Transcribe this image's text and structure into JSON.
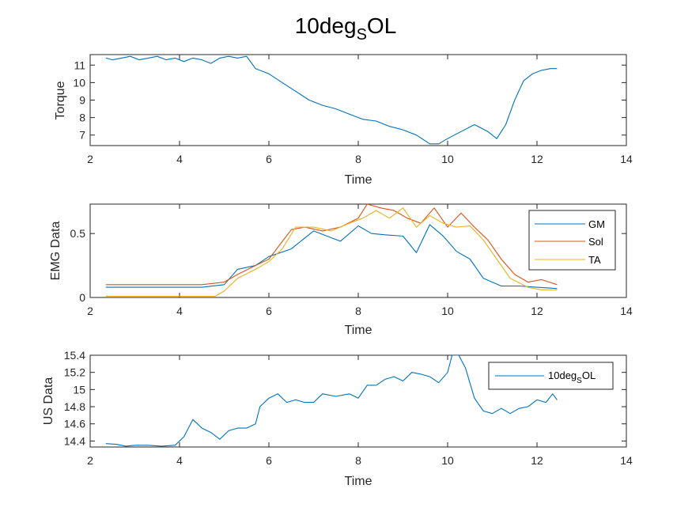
{
  "figure": {
    "title_main": "10deg",
    "title_sub": "S",
    "title_tail": "OL"
  },
  "chart_data": [
    {
      "type": "line",
      "xlabel": "Time",
      "ylabel": "Torque",
      "xlim": [
        2,
        14
      ],
      "ylim": [
        6.4,
        11.6
      ],
      "xticks": [
        2,
        4,
        6,
        8,
        10,
        12,
        14
      ],
      "yticks": [
        7,
        8,
        9,
        10,
        11
      ],
      "grid": false,
      "series": [
        {
          "color": "#0072BD",
          "x": [
            2.35,
            2.5,
            2.7,
            2.9,
            3.1,
            3.3,
            3.5,
            3.7,
            3.9,
            4.1,
            4.3,
            4.5,
            4.7,
            4.9,
            5.1,
            5.3,
            5.5,
            5.7,
            6.0,
            6.3,
            6.6,
            6.9,
            7.2,
            7.5,
            7.8,
            8.1,
            8.4,
            8.7,
            9.0,
            9.3,
            9.6,
            9.8,
            10.0,
            10.3,
            10.6,
            10.9,
            11.1,
            11.3,
            11.5,
            11.7,
            11.9,
            12.1,
            12.3,
            12.45
          ],
          "y": [
            11.4,
            11.3,
            11.4,
            11.5,
            11.3,
            11.4,
            11.5,
            11.3,
            11.4,
            11.2,
            11.4,
            11.3,
            11.1,
            11.4,
            11.5,
            11.4,
            11.5,
            10.8,
            10.5,
            10.0,
            9.5,
            9.0,
            8.7,
            8.5,
            8.2,
            7.9,
            7.8,
            7.5,
            7.3,
            7.0,
            6.5,
            6.5,
            6.8,
            7.2,
            7.6,
            7.2,
            6.8,
            7.6,
            9.0,
            10.1,
            10.5,
            10.7,
            10.8,
            10.8
          ]
        }
      ]
    },
    {
      "type": "line",
      "xlabel": "Time",
      "ylabel": "EMG Data",
      "xlim": [
        2,
        14
      ],
      "ylim": [
        0,
        0.73
      ],
      "xticks": [
        2,
        4,
        6,
        8,
        10,
        12,
        14
      ],
      "yticks": [
        0,
        0.5
      ],
      "ytick_labels": [
        "0",
        "0.5"
      ],
      "grid": false,
      "legend": "top-right",
      "series": [
        {
          "name": "GM",
          "color": "#0072BD",
          "x": [
            2.35,
            3.0,
            3.5,
            4.0,
            4.5,
            5.0,
            5.3,
            5.7,
            6.0,
            6.5,
            7.0,
            7.3,
            7.6,
            8.0,
            8.3,
            8.6,
            9.0,
            9.3,
            9.6,
            9.9,
            10.2,
            10.5,
            10.8,
            11.2,
            11.6,
            12.0,
            12.45
          ],
          "y": [
            0.08,
            0.08,
            0.08,
            0.08,
            0.08,
            0.1,
            0.22,
            0.25,
            0.32,
            0.38,
            0.52,
            0.48,
            0.44,
            0.56,
            0.5,
            0.49,
            0.48,
            0.35,
            0.57,
            0.48,
            0.36,
            0.3,
            0.15,
            0.09,
            0.09,
            0.08,
            0.07
          ]
        },
        {
          "name": "Sol",
          "color": "#D95319",
          "x": [
            2.35,
            3.0,
            3.5,
            4.0,
            4.5,
            5.0,
            5.3,
            5.7,
            6.0,
            6.5,
            6.8,
            7.2,
            7.6,
            8.0,
            8.2,
            8.5,
            8.8,
            9.1,
            9.4,
            9.7,
            10.0,
            10.3,
            10.6,
            10.9,
            11.2,
            11.5,
            11.8,
            12.1,
            12.45
          ],
          "y": [
            0.1,
            0.1,
            0.1,
            0.1,
            0.1,
            0.12,
            0.18,
            0.25,
            0.3,
            0.53,
            0.55,
            0.52,
            0.55,
            0.62,
            0.73,
            0.7,
            0.68,
            0.62,
            0.58,
            0.7,
            0.55,
            0.66,
            0.55,
            0.45,
            0.3,
            0.18,
            0.12,
            0.14,
            0.1
          ]
        },
        {
          "name": "TA",
          "color": "#EDB120",
          "x": [
            2.35,
            3.0,
            3.5,
            4.0,
            4.5,
            4.8,
            5.0,
            5.3,
            5.7,
            6.0,
            6.3,
            6.6,
            7.0,
            7.4,
            7.8,
            8.1,
            8.4,
            8.7,
            9.0,
            9.3,
            9.6,
            9.9,
            10.2,
            10.5,
            10.8,
            11.1,
            11.4,
            11.8,
            12.1,
            12.45
          ],
          "y": [
            0.01,
            0.01,
            0.01,
            0.01,
            0.01,
            0.01,
            0.05,
            0.15,
            0.22,
            0.28,
            0.38,
            0.55,
            0.55,
            0.52,
            0.58,
            0.62,
            0.68,
            0.62,
            0.7,
            0.55,
            0.64,
            0.58,
            0.55,
            0.56,
            0.45,
            0.3,
            0.15,
            0.08,
            0.06,
            0.06
          ]
        }
      ]
    },
    {
      "type": "line",
      "xlabel": "Time",
      "ylabel": "US Data",
      "xlim": [
        2,
        14
      ],
      "ylim": [
        14.33,
        15.4
      ],
      "xticks": [
        2,
        4,
        6,
        8,
        10,
        12,
        14
      ],
      "yticks": [
        14.4,
        14.6,
        14.8,
        15,
        15.2,
        15.4
      ],
      "ytick_labels": [
        "14.4",
        "14.6",
        "14.8",
        "15",
        "15.2",
        "15.4"
      ],
      "grid": false,
      "legend": "top-right",
      "legend_main": "10deg",
      "legend_sub": "S",
      "legend_tail": "OL",
      "series": [
        {
          "color": "#0072BD",
          "x": [
            2.35,
            2.6,
            2.8,
            3.0,
            3.3,
            3.6,
            3.9,
            4.1,
            4.3,
            4.5,
            4.7,
            4.9,
            5.1,
            5.3,
            5.5,
            5.7,
            5.8,
            6.0,
            6.2,
            6.4,
            6.6,
            6.8,
            7.0,
            7.2,
            7.5,
            7.8,
            8.0,
            8.2,
            8.4,
            8.6,
            8.8,
            9.0,
            9.2,
            9.4,
            9.6,
            9.8,
            10.0,
            10.1,
            10.25,
            10.4,
            10.6,
            10.8,
            11.0,
            11.2,
            11.4,
            11.6,
            11.8,
            12.0,
            12.2,
            12.35,
            12.45
          ],
          "y": [
            14.37,
            14.36,
            14.34,
            14.35,
            14.35,
            14.34,
            14.35,
            14.45,
            14.65,
            14.55,
            14.5,
            14.42,
            14.52,
            14.55,
            14.55,
            14.6,
            14.8,
            14.9,
            14.95,
            14.85,
            14.88,
            14.85,
            14.85,
            14.95,
            14.92,
            14.95,
            14.9,
            15.05,
            15.05,
            15.12,
            15.15,
            15.1,
            15.2,
            15.18,
            15.15,
            15.08,
            15.2,
            15.4,
            15.4,
            15.25,
            14.9,
            14.75,
            14.72,
            14.78,
            14.72,
            14.78,
            14.8,
            14.88,
            14.85,
            14.95,
            14.88
          ]
        }
      ]
    }
  ]
}
